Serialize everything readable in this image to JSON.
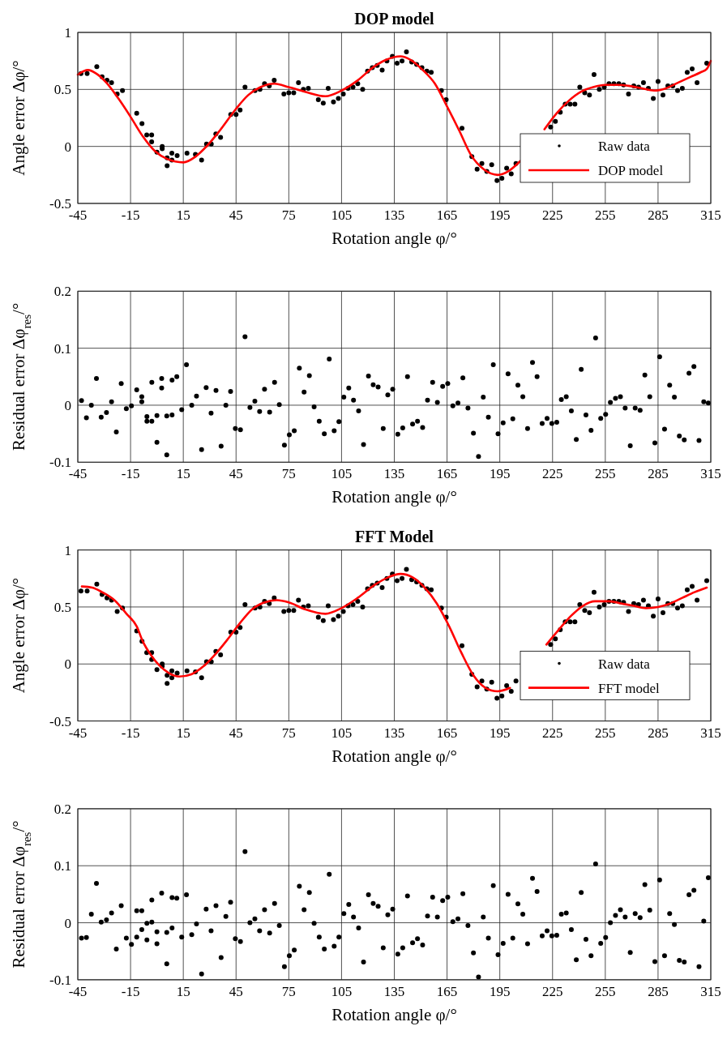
{
  "chart_data": [
    {
      "type": "scatter",
      "title": "DOP model",
      "xlabel": "Rotation angle φ/°",
      "ylabel": "Angle error Δφ/°",
      "xlim": [
        -45,
        315
      ],
      "xticks": [
        -45,
        -15,
        15,
        45,
        75,
        105,
        135,
        165,
        195,
        225,
        255,
        285,
        315
      ],
      "ylim": [
        -0.5,
        1
      ],
      "yticks": [
        -0.5,
        0,
        0.5,
        1
      ],
      "grid": true,
      "legend": "bottom right",
      "marker": "circle",
      "series": [
        {
          "name": "Raw data",
          "type": "scatter",
          "color": "#000000",
          "x": [
            -43.2,
            -39.7,
            -34.2,
            -31.2,
            -28.4,
            -25.8,
            -22.6,
            -19.6,
            -11.5,
            -8.5,
            -5.8,
            -3.0,
            -3.0,
            0.0,
            3.0,
            3.0,
            5.8,
            5.8,
            8.5,
            8.5,
            11.5,
            17.1,
            21.9,
            25.4,
            28.2,
            30.9,
            33.5,
            36.2,
            42.0,
            45.0,
            47.3,
            50.1,
            55.8,
            58.6,
            61.2,
            63.9,
            66.7,
            72.2,
            75.0,
            77.8,
            80.5,
            83.3,
            86.1,
            91.8,
            94.6,
            97.4,
            100.4,
            103.2,
            106.0,
            108.7,
            111.5,
            114.2,
            117.0,
            119.8,
            122.5,
            125.3,
            128.1,
            130.8,
            133.9,
            136.6,
            139.4,
            141.9,
            144.9,
            147.7,
            150.7,
            153.5,
            156.0,
            161.8,
            164.5,
            173.5,
            179.1,
            182.1,
            184.8,
            187.6,
            190.4,
            193.4,
            196.2,
            198.9,
            201.5,
            204.2,
            223.9,
            226.6,
            229.4,
            232.2,
            235.0,
            237.7,
            240.5,
            243.3,
            246.0,
            248.6,
            251.6,
            254.4,
            257.1,
            259.9,
            262.7,
            265.4,
            268.2,
            271.2,
            273.9,
            276.7,
            279.5,
            282.3,
            285.0,
            287.8,
            290.6,
            293.4,
            296.1,
            298.8,
            301.6,
            304.4,
            307.2,
            312.7
          ],
          "values": [
            0.64,
            0.64,
            0.7,
            0.61,
            0.58,
            0.56,
            0.46,
            0.49,
            0.29,
            0.2,
            0.1,
            0.1,
            0.04,
            -0.05,
            0.0,
            -0.02,
            -0.1,
            -0.17,
            -0.06,
            -0.12,
            -0.08,
            -0.06,
            -0.07,
            -0.12,
            0.02,
            0.02,
            0.11,
            0.08,
            0.28,
            0.28,
            0.32,
            0.52,
            0.49,
            0.5,
            0.55,
            0.53,
            0.58,
            0.46,
            0.47,
            0.47,
            0.56,
            0.5,
            0.51,
            0.41,
            0.38,
            0.51,
            0.39,
            0.42,
            0.46,
            0.51,
            0.52,
            0.55,
            0.5,
            0.66,
            0.69,
            0.71,
            0.67,
            0.75,
            0.79,
            0.73,
            0.75,
            0.83,
            0.74,
            0.72,
            0.69,
            0.66,
            0.65,
            0.49,
            0.41,
            0.16,
            -0.09,
            -0.2,
            -0.15,
            -0.22,
            -0.16,
            -0.3,
            -0.28,
            -0.19,
            -0.24,
            -0.15,
            0.17,
            0.22,
            0.3,
            0.37,
            0.37,
            0.37,
            0.52,
            0.47,
            0.45,
            0.63,
            0.5,
            0.52,
            0.55,
            0.55,
            0.55,
            0.54,
            0.46,
            0.53,
            0.52,
            0.56,
            0.51,
            0.42,
            0.57,
            0.45,
            0.53,
            0.53,
            0.49,
            0.51,
            0.65,
            0.68,
            0.56,
            0.73
          ]
        },
        {
          "name": "DOP model",
          "type": "line",
          "marker": "none",
          "color": "#ff0000",
          "x": [
            -45,
            -39.2,
            -34.6,
            -28.8,
            -21.9,
            -15,
            -8.1,
            -1.2,
            5.8,
            15,
            21.9,
            28.8,
            35.8,
            45,
            51.9,
            58.9,
            66.9,
            75,
            84.2,
            95.8,
            105,
            114.2,
            123.5,
            130.4,
            138.5,
            144.2,
            151.2,
            158.1,
            165,
            171.9,
            178.8,
            185.8,
            193.9,
            199.6,
            206.5,
            213.5,
            220.4,
            227.3,
            234.2,
            241.2,
            248.1,
            255,
            261.9,
            268.9,
            275.8,
            282.7,
            289.6,
            296.5,
            303.5,
            309.2,
            312.7,
            315
          ],
          "values": [
            0.63,
            0.67,
            0.64,
            0.56,
            0.42,
            0.26,
            0.09,
            -0.04,
            -0.11,
            -0.14,
            -0.09,
            0.01,
            0.14,
            0.33,
            0.45,
            0.52,
            0.55,
            0.52,
            0.48,
            0.44,
            0.49,
            0.58,
            0.7,
            0.76,
            0.79,
            0.76,
            0.67,
            0.55,
            0.35,
            0.14,
            -0.08,
            -0.2,
            -0.25,
            -0.22,
            -0.13,
            null,
            0.15,
            0.29,
            0.4,
            0.48,
            0.52,
            0.54,
            0.54,
            0.53,
            0.51,
            0.49,
            0.51,
            0.56,
            0.61,
            0.65,
            0.68,
            0.75
          ]
        }
      ]
    },
    {
      "type": "scatter",
      "xlabel": "Rotation angle φ/°",
      "ylabel": "Residual error Δφ$_{res}$/°",
      "xlim": [
        -45,
        315
      ],
      "xticks": [
        -45,
        -15,
        15,
        45,
        75,
        105,
        135,
        165,
        195,
        225,
        255,
        285,
        315
      ],
      "ylim": [
        -0.1,
        0.2
      ],
      "yticks": [
        -0.1,
        0,
        0.1,
        0.2
      ],
      "grid": true,
      "marker": "circle",
      "series": [
        {
          "type": "scatter",
          "color": "#000000",
          "x": [
            -42.9,
            -40.1,
            -37.3,
            -34.4,
            -31.7,
            -28.7,
            -25.8,
            -23.1,
            -20.3,
            -17.4,
            -14.5,
            -11.5,
            -8.6,
            -8.6,
            -5.7,
            -5.7,
            -2.9,
            -2.9,
            0.0,
            0.0,
            2.7,
            2.7,
            5.6,
            5.6,
            8.6,
            8.6,
            11.3,
            14.1,
            16.8,
            19.8,
            22.5,
            25.4,
            28.0,
            30.8,
            33.6,
            36.5,
            39.2,
            41.9,
            44.6,
            47.5,
            50.1,
            52.9,
            55.7,
            58.4,
            61.2,
            64.1,
            66.9,
            69.6,
            72.5,
            75.3,
            78.1,
            81.0,
            83.7,
            86.7,
            89.4,
            92.3,
            95.2,
            98.0,
            100.8,
            103.5,
            106.3,
            109.1,
            111.8,
            114.7,
            117.5,
            120.3,
            123.0,
            125.8,
            128.7,
            131.3,
            134.1,
            137.0,
            139.8,
            142.5,
            145.4,
            148.2,
            151.1,
            153.9,
            156.8,
            159.5,
            162.5,
            165.4,
            168.3,
            171.2,
            174.0,
            176.9,
            180.0,
            182.9,
            185.6,
            188.5,
            191.3,
            194.0,
            196.9,
            199.7,
            202.4,
            205.3,
            208.1,
            210.8,
            213.6,
            216.2,
            219.1,
            221.9,
            224.6,
            227.4,
            230.0,
            232.8,
            235.7,
            238.5,
            241.3,
            244.0,
            246.9,
            249.5,
            252.4,
            255.2,
            257.9,
            260.8,
            263.6,
            266.3,
            269.2,
            272.0,
            274.8,
            277.5,
            280.3,
            283.2,
            285.9,
            288.7,
            291.6,
            294.3,
            297.1,
            299.9,
            302.6,
            305.4,
            308.3,
            311.0,
            313.6
          ],
          "values": [
            0.008,
            -0.022,
            0.0,
            0.047,
            -0.021,
            -0.013,
            0.006,
            -0.047,
            0.038,
            -0.006,
            -0.001,
            0.027,
            0.015,
            0.006,
            -0.02,
            -0.028,
            0.04,
            -0.028,
            -0.018,
            -0.065,
            0.047,
            0.03,
            -0.019,
            -0.087,
            0.044,
            -0.017,
            0.05,
            -0.008,
            0.071,
            0.0,
            0.016,
            -0.078,
            0.031,
            -0.014,
            0.026,
            -0.072,
            0.0,
            0.024,
            -0.041,
            -0.043,
            0.12,
            -0.004,
            0.007,
            -0.011,
            0.028,
            -0.012,
            0.04,
            0.001,
            -0.07,
            -0.052,
            -0.045,
            0.065,
            0.023,
            0.052,
            -0.003,
            -0.028,
            -0.05,
            0.081,
            -0.045,
            -0.029,
            0.014,
            0.03,
            0.009,
            -0.01,
            -0.069,
            0.051,
            0.036,
            0.032,
            -0.041,
            0.018,
            0.028,
            -0.051,
            -0.04,
            0.05,
            -0.033,
            -0.028,
            -0.039,
            0.009,
            0.04,
            0.005,
            0.033,
            0.038,
            -0.001,
            0.004,
            0.048,
            -0.005,
            -0.049,
            -0.09,
            0.014,
            -0.021,
            0.071,
            -0.05,
            -0.031,
            0.055,
            -0.024,
            0.035,
            0.015,
            -0.041,
            0.075,
            0.05,
            -0.032,
            -0.023,
            -0.032,
            -0.03,
            0.01,
            0.015,
            -0.01,
            -0.06,
            0.063,
            -0.017,
            -0.044,
            0.118,
            -0.023,
            -0.016,
            0.005,
            0.012,
            0.015,
            -0.005,
            -0.071,
            -0.005,
            -0.009,
            0.053,
            0.015,
            -0.066,
            0.085,
            -0.042,
            0.035,
            0.014,
            -0.054,
            -0.061,
            0.056,
            0.068,
            -0.062,
            0.006,
            0.004
          ]
        }
      ]
    },
    {
      "type": "scatter",
      "title": "FFT Model",
      "xlabel": "Rotation angle φ/°",
      "ylabel": "Angle error Δφ/°",
      "xlim": [
        -45,
        315
      ],
      "xticks": [
        -45,
        -15,
        15,
        45,
        75,
        105,
        135,
        165,
        195,
        225,
        255,
        285,
        315
      ],
      "ylim": [
        -0.5,
        1
      ],
      "yticks": [
        -0.5,
        0,
        0.5,
        1
      ],
      "grid": true,
      "legend": "bottom right",
      "marker": "circle",
      "series": [
        {
          "name": "Raw data",
          "type": "scatter",
          "color": "#000000",
          "x": [
            -43.2,
            -39.7,
            -34.2,
            -31.2,
            -28.4,
            -25.8,
            -22.6,
            -19.6,
            -11.5,
            -8.5,
            -5.8,
            -3.0,
            -3.0,
            0.0,
            3.0,
            3.0,
            5.8,
            5.8,
            8.5,
            8.5,
            11.5,
            17.1,
            21.9,
            25.4,
            28.2,
            30.9,
            33.5,
            36.2,
            42.0,
            45.0,
            47.3,
            50.1,
            55.8,
            58.6,
            61.2,
            63.9,
            66.7,
            72.2,
            75.0,
            77.8,
            80.5,
            83.3,
            86.1,
            91.8,
            94.6,
            97.4,
            100.4,
            103.2,
            106.0,
            108.7,
            111.5,
            114.2,
            117.0,
            119.8,
            122.5,
            125.3,
            128.1,
            130.8,
            133.9,
            136.6,
            139.4,
            141.9,
            144.9,
            147.7,
            150.7,
            153.5,
            156.0,
            161.8,
            164.5,
            173.5,
            179.1,
            182.1,
            184.8,
            187.6,
            190.4,
            193.4,
            196.2,
            198.9,
            201.5,
            204.2,
            223.9,
            226.6,
            229.4,
            232.2,
            235.0,
            237.7,
            240.5,
            243.3,
            246.0,
            248.6,
            251.6,
            254.4,
            257.1,
            259.9,
            262.7,
            265.4,
            268.2,
            271.2,
            273.9,
            276.7,
            279.5,
            282.3,
            285.0,
            287.8,
            290.6,
            293.4,
            296.1,
            298.8,
            301.6,
            304.4,
            307.2,
            312.7
          ],
          "values": [
            0.64,
            0.64,
            0.7,
            0.61,
            0.58,
            0.56,
            0.46,
            0.49,
            0.29,
            0.2,
            0.1,
            0.1,
            0.04,
            -0.05,
            0.0,
            -0.02,
            -0.1,
            -0.17,
            -0.06,
            -0.12,
            -0.08,
            -0.06,
            -0.07,
            -0.12,
            0.02,
            0.02,
            0.11,
            0.08,
            0.28,
            0.28,
            0.32,
            0.52,
            0.49,
            0.5,
            0.55,
            0.53,
            0.58,
            0.46,
            0.47,
            0.47,
            0.56,
            0.5,
            0.51,
            0.41,
            0.38,
            0.51,
            0.39,
            0.42,
            0.46,
            0.51,
            0.52,
            0.55,
            0.5,
            0.66,
            0.69,
            0.71,
            0.67,
            0.75,
            0.79,
            0.73,
            0.75,
            0.83,
            0.74,
            0.72,
            0.69,
            0.66,
            0.65,
            0.49,
            0.41,
            0.16,
            -0.09,
            -0.2,
            -0.15,
            -0.22,
            -0.16,
            -0.3,
            -0.28,
            -0.19,
            -0.24,
            -0.15,
            0.17,
            0.22,
            0.3,
            0.37,
            0.37,
            0.37,
            0.52,
            0.47,
            0.45,
            0.63,
            0.5,
            0.52,
            0.55,
            0.55,
            0.55,
            0.54,
            0.46,
            0.53,
            0.52,
            0.56,
            0.51,
            0.42,
            0.57,
            0.45,
            0.53,
            0.53,
            0.49,
            0.51,
            0.65,
            0.68,
            0.56,
            0.73
          ]
        },
        {
          "name": "FFT model",
          "type": "line",
          "marker": "none",
          "color": "#ff0000",
          "x": [
            -42.7,
            -36.9,
            -31.2,
            -24.2,
            -17.3,
            -11.5,
            -8.1,
            -3.5,
            1.2,
            6.9,
            12.7,
            19.6,
            26.5,
            33.5,
            40.4,
            47.3,
            54.2,
            61.2,
            68.1,
            75,
            84.2,
            95.8,
            105,
            114.2,
            123.5,
            131.5,
            138.5,
            145.4,
            152.3,
            159.2,
            166.2,
            173.1,
            180,
            186.9,
            193.8,
            200.8,
            207.7,
            214.6,
            221.5,
            228.5,
            235.4,
            242.3,
            249.2,
            257.3,
            264.2,
            271.2,
            278.1,
            285,
            291.9,
            298.8,
            305.8,
            312.7
          ],
          "values": [
            0.68,
            0.67,
            0.63,
            0.56,
            0.44,
            0.33,
            0.2,
            0.08,
            -0.01,
            -0.08,
            -0.11,
            -0.09,
            -0.02,
            0.09,
            0.22,
            0.36,
            0.48,
            0.54,
            0.56,
            0.54,
            0.48,
            0.44,
            0.49,
            0.58,
            0.69,
            0.76,
            0.79,
            0.76,
            0.67,
            0.53,
            0.33,
            0.1,
            -0.1,
            -0.21,
            -0.24,
            -0.21,
            null,
            null,
            0.17,
            0.3,
            0.42,
            0.51,
            0.55,
            0.55,
            0.53,
            0.51,
            0.49,
            0.5,
            0.53,
            0.58,
            0.63,
            0.67
          ]
        }
      ]
    },
    {
      "type": "scatter",
      "xlabel": "Rotation angle φ/°",
      "ylabel": "Residual error Δφ$_{res}$/°",
      "xlim": [
        -45,
        315
      ],
      "xticks": [
        -45,
        -15,
        15,
        45,
        75,
        105,
        135,
        165,
        195,
        225,
        255,
        285,
        315
      ],
      "ylim": [
        -0.1,
        0.2
      ],
      "yticks": [
        -0.1,
        0,
        0.1,
        0.2
      ],
      "grid": true,
      "marker": "circle",
      "series": [
        {
          "type": "scatter",
          "color": "#000000",
          "x": [
            -42.9,
            -40.1,
            -37.3,
            -34.4,
            -31.7,
            -28.7,
            -25.8,
            -23.1,
            -20.3,
            -17.4,
            -14.5,
            -11.5,
            -11.5,
            -8.6,
            -8.6,
            -5.7,
            -5.7,
            -2.9,
            -2.9,
            0.0,
            0.0,
            2.7,
            5.6,
            5.6,
            8.6,
            8.6,
            11.3,
            14.1,
            16.8,
            19.8,
            22.5,
            25.4,
            28.0,
            30.8,
            33.6,
            36.5,
            39.2,
            41.9,
            44.6,
            47.5,
            50.1,
            52.9,
            55.7,
            58.4,
            61.2,
            64.1,
            66.9,
            69.6,
            72.5,
            75.3,
            78.1,
            81.0,
            83.7,
            86.7,
            89.4,
            92.3,
            95.2,
            98.0,
            100.8,
            103.5,
            106.3,
            109.1,
            111.8,
            114.7,
            117.5,
            120.3,
            123.0,
            125.8,
            128.7,
            131.3,
            134.1,
            137.0,
            139.8,
            142.5,
            145.4,
            148.2,
            151.1,
            153.9,
            156.8,
            159.5,
            162.5,
            165.4,
            168.3,
            171.2,
            174.0,
            176.9,
            180.0,
            182.9,
            185.6,
            188.5,
            191.3,
            194.0,
            196.9,
            199.7,
            202.4,
            205.3,
            208.1,
            210.8,
            213.6,
            216.2,
            219.1,
            221.9,
            224.6,
            227.4,
            230.0,
            232.8,
            235.7,
            238.5,
            241.3,
            244.0,
            246.9,
            249.5,
            252.4,
            255.2,
            257.9,
            260.8,
            263.6,
            266.3,
            269.2,
            272.0,
            274.8,
            277.5,
            280.3,
            283.2,
            285.9,
            288.7,
            291.6,
            294.3,
            297.1,
            299.9,
            302.6,
            305.4,
            308.3,
            311.0,
            313.6
          ],
          "values": [
            -0.027,
            -0.026,
            0.015,
            0.069,
            0.001,
            0.005,
            0.017,
            -0.046,
            0.03,
            -0.027,
            -0.038,
            0.021,
            -0.025,
            0.021,
            -0.012,
            -0.001,
            -0.03,
            0.04,
            0.001,
            -0.016,
            -0.037,
            0.052,
            -0.017,
            -0.072,
            0.044,
            -0.009,
            0.043,
            -0.025,
            0.049,
            -0.021,
            -0.002,
            -0.09,
            0.024,
            -0.014,
            0.03,
            -0.061,
            0.011,
            0.036,
            -0.028,
            -0.033,
            0.125,
            0.0,
            0.007,
            -0.014,
            0.023,
            -0.018,
            0.034,
            -0.005,
            -0.077,
            -0.058,
            -0.048,
            0.064,
            0.023,
            0.053,
            -0.001,
            -0.025,
            -0.046,
            0.085,
            -0.041,
            -0.025,
            0.016,
            0.032,
            0.01,
            -0.009,
            -0.069,
            0.049,
            0.034,
            0.029,
            -0.044,
            0.014,
            0.024,
            -0.055,
            -0.044,
            0.047,
            -0.035,
            -0.028,
            -0.039,
            0.012,
            0.045,
            0.01,
            0.039,
            0.045,
            0.002,
            0.007,
            0.051,
            -0.005,
            -0.053,
            -0.095,
            0.01,
            -0.027,
            0.065,
            -0.056,
            -0.036,
            0.05,
            -0.027,
            0.033,
            0.015,
            -0.037,
            0.078,
            0.055,
            -0.023,
            -0.014,
            -0.023,
            -0.022,
            0.015,
            0.017,
            -0.012,
            -0.065,
            0.053,
            -0.029,
            -0.058,
            0.103,
            -0.036,
            -0.026,
            0.0,
            0.013,
            0.023,
            0.01,
            -0.052,
            0.016,
            0.009,
            0.067,
            0.022,
            -0.068,
            0.075,
            -0.058,
            0.016,
            -0.003,
            -0.066,
            -0.069,
            0.049,
            0.057,
            -0.077,
            0.003,
            0.079
          ]
        }
      ]
    }
  ]
}
